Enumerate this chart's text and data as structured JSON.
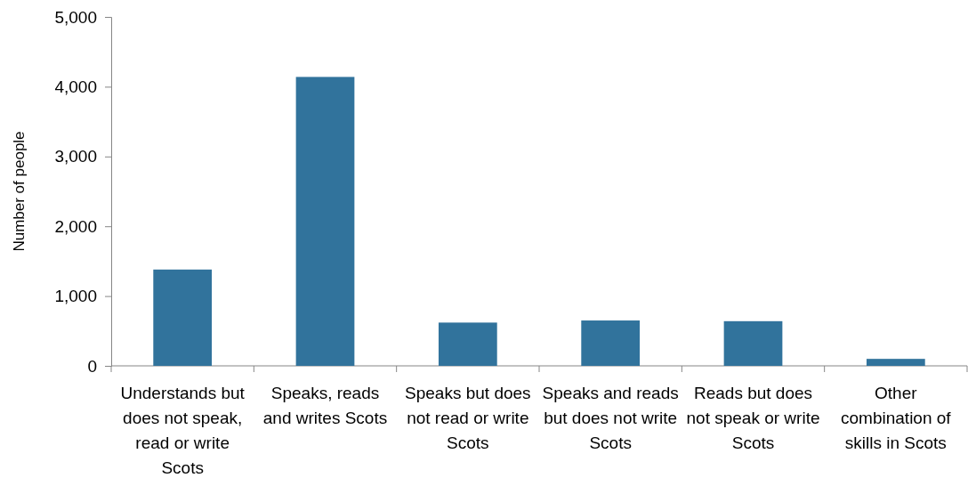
{
  "chart_data": {
    "type": "bar",
    "ylabel": "Number of people",
    "categories": [
      "Understands but does not speak, read or write Scots",
      "Speaks, reads and writes Scots",
      "Speaks but does not read or write Scots",
      "Speaks and reads but does not write Scots",
      "Reads but does not speak or write Scots",
      "Other combination of skills in Scots"
    ],
    "values": [
      1380,
      4140,
      620,
      650,
      640,
      100
    ],
    "color": "#31739c",
    "ylim": [
      0,
      5000
    ],
    "yticks": [
      0,
      {
        "value": 1000,
        "label": "1,000"
      },
      {
        "value": 2000,
        "label": "2,000"
      },
      {
        "value": 3000,
        "label": "3,000"
      },
      {
        "value": 4000,
        "label": "4,000"
      },
      {
        "value": 5000,
        "label": "5,000"
      }
    ],
    "grid": false
  }
}
